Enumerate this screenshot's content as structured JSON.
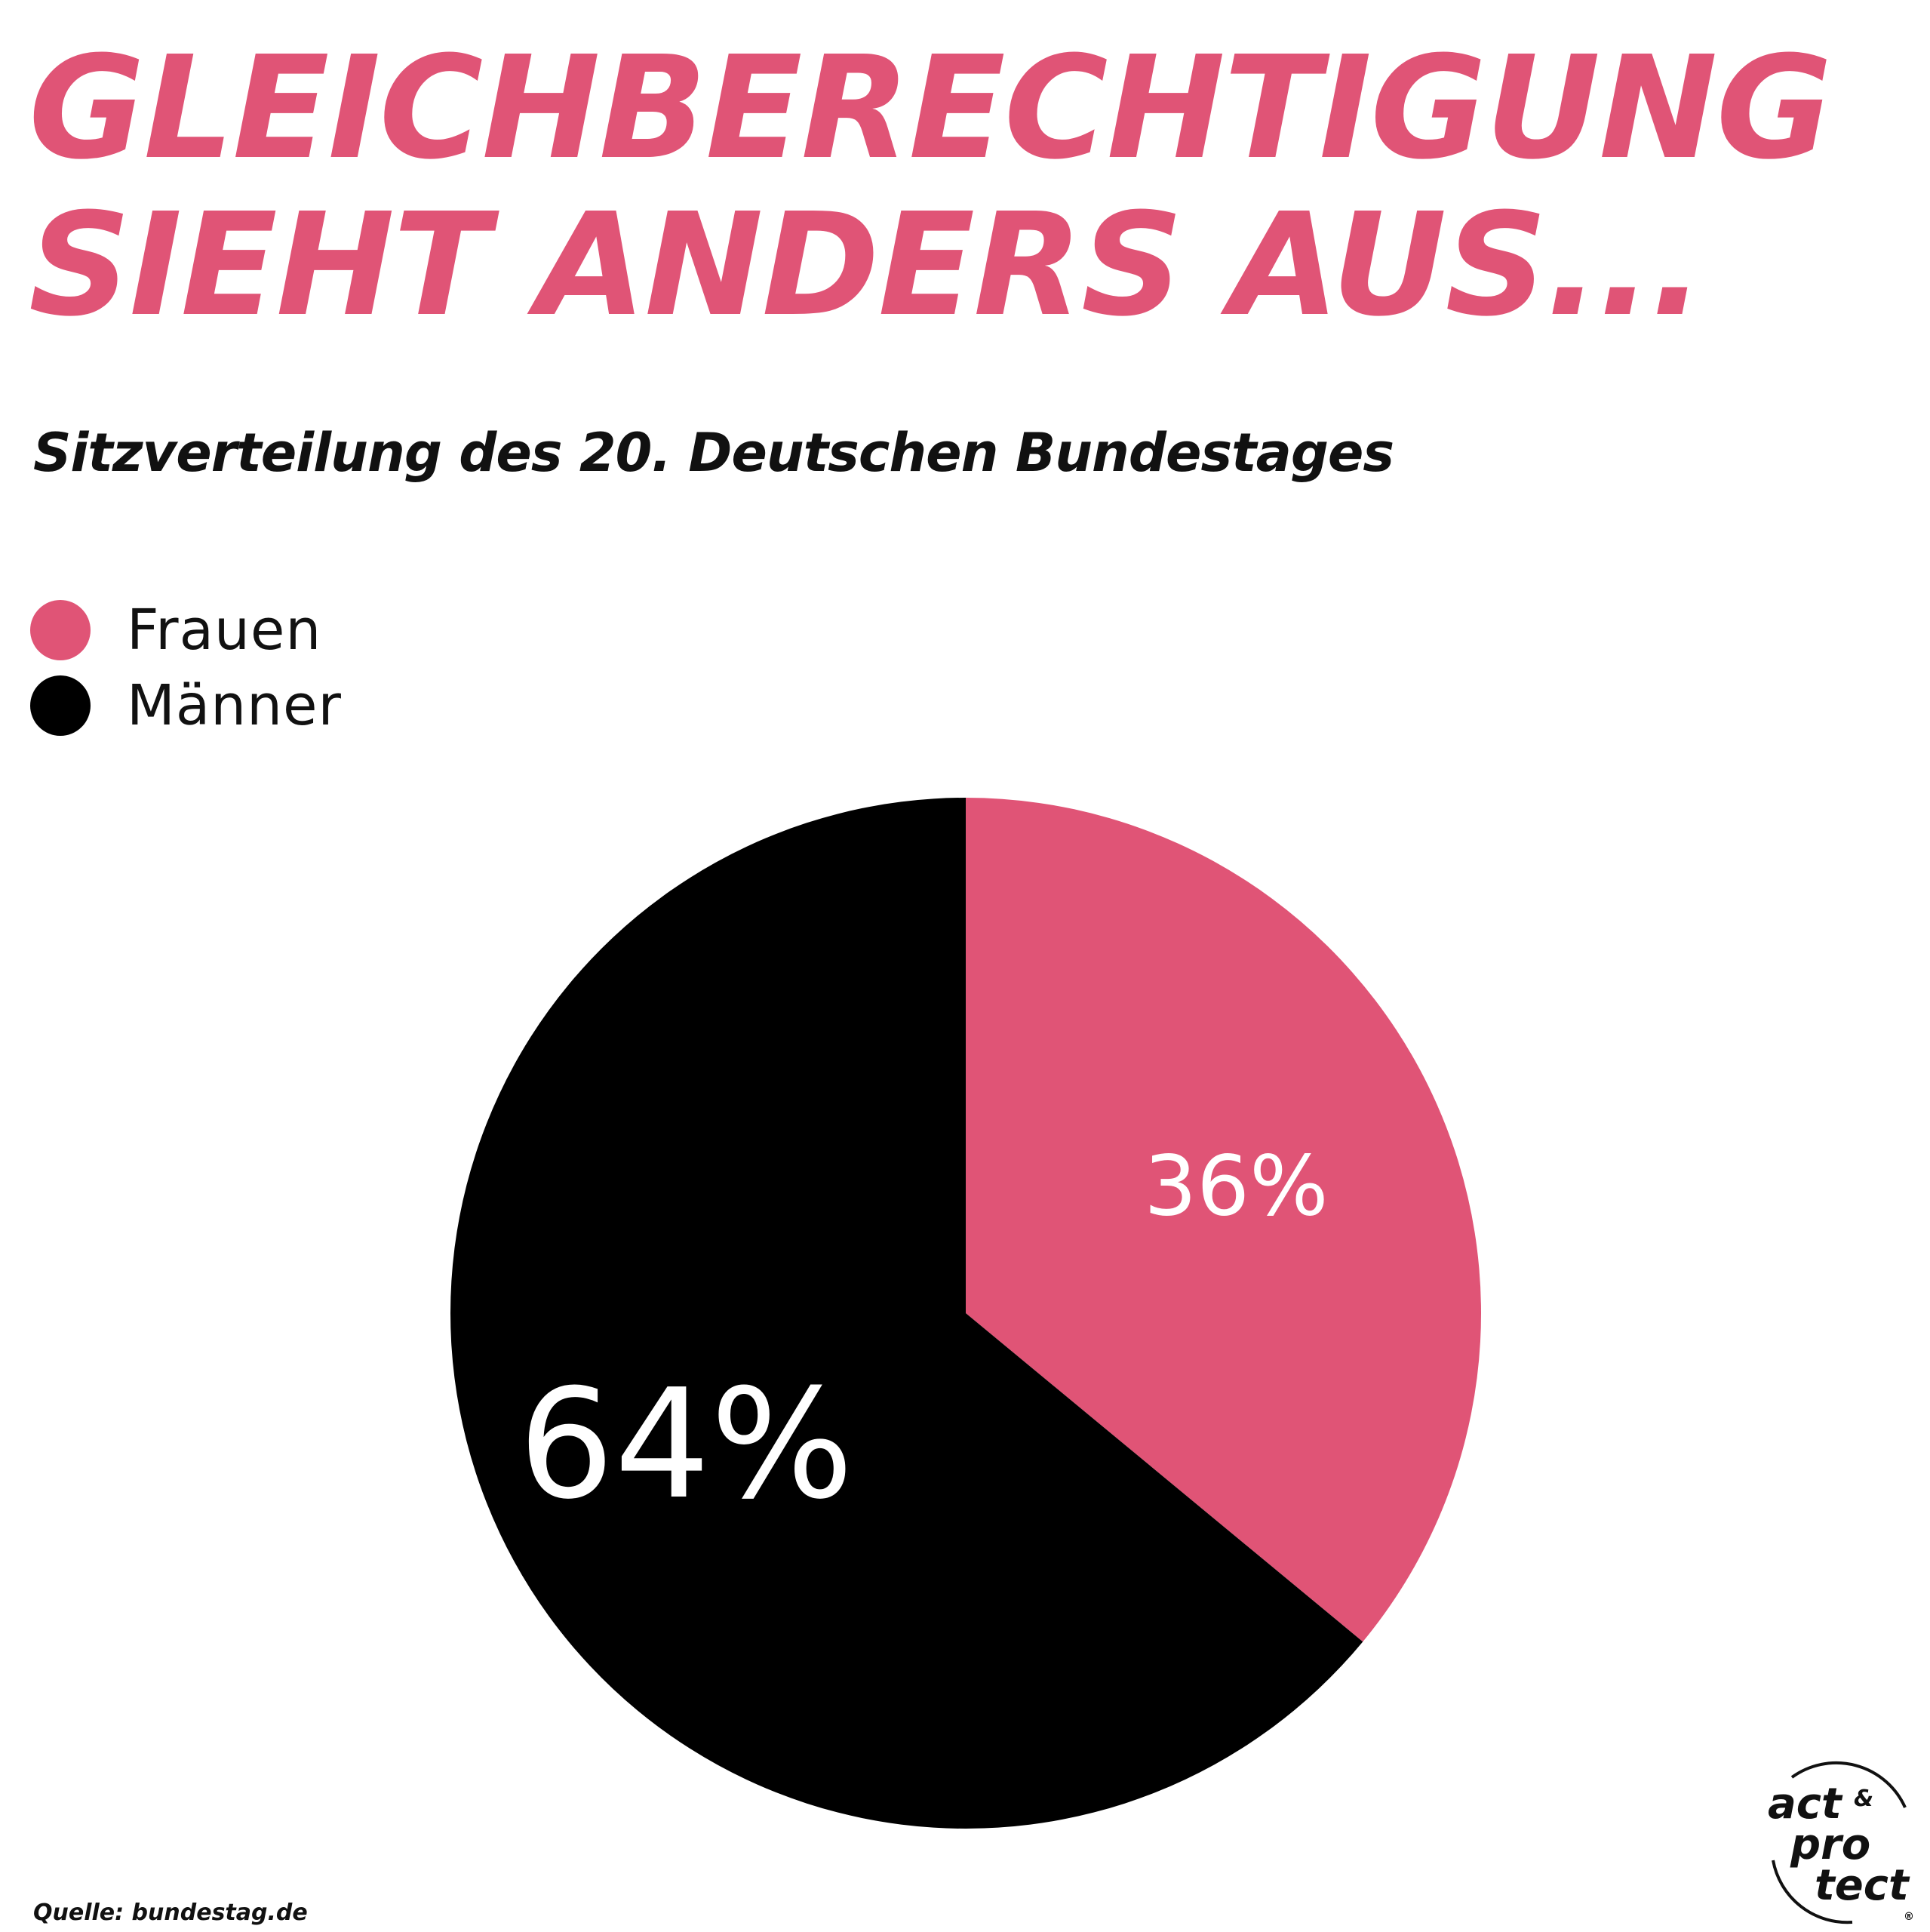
{
  "headline": {
    "line1": "GLEICHBERECHTIGUNG",
    "line2": "SIEHT ANDERS AUS..."
  },
  "colors": {
    "accent": "#e05476",
    "dark": "#000000",
    "text": "#111111",
    "label_on_chart": "#ffffff"
  },
  "legend": [
    {
      "label": "Frauen",
      "color": "#e05476"
    },
    {
      "label": "Männer",
      "color": "#000000"
    }
  ],
  "chart_data": {
    "type": "pie",
    "title": "Sitzverteilung des 20. Deutschen Bundestages",
    "legend_position": "top-left",
    "categories": [
      "Frauen",
      "Männer"
    ],
    "values": [
      36,
      64
    ],
    "labels": [
      "36%",
      "64%"
    ],
    "colors": [
      "#e05476",
      "#000000"
    ]
  },
  "source": "Quelle: bundestag.de",
  "logo": {
    "line1": "act",
    "amp": "&",
    "line2": "pro",
    "line3": "tect",
    "mark": "®"
  }
}
